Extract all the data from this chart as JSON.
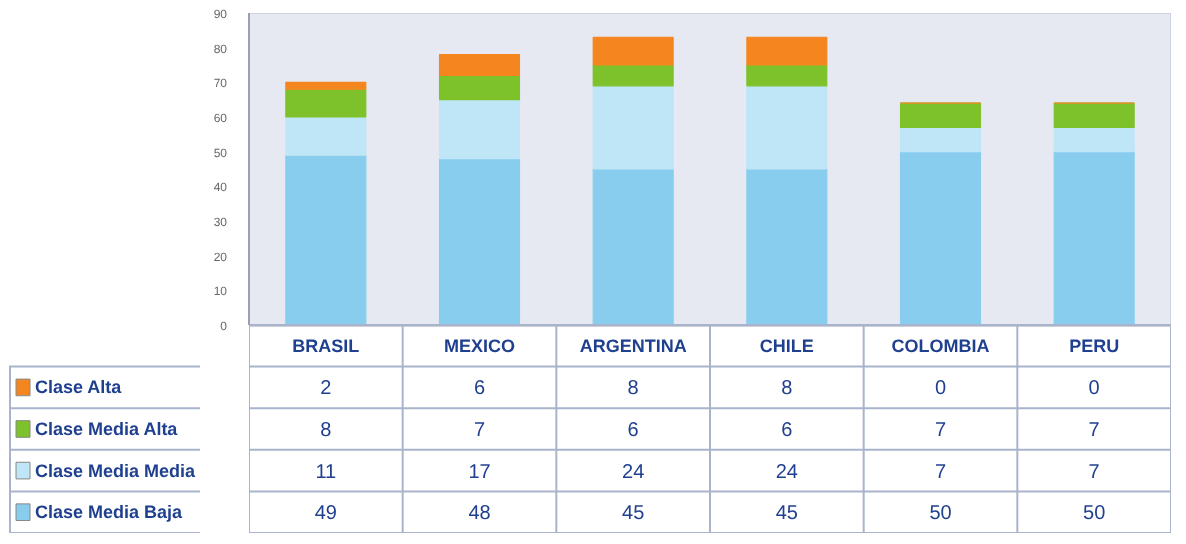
{
  "chart_data": {
    "type": "bar",
    "stacked": true,
    "data_labels": true,
    "grid": "y",
    "legend": "bottom",
    "categories": [
      "BRASIL",
      "MEXICO",
      "ARGENTINA",
      "CHILE",
      "COLOMBIA",
      "PERU"
    ],
    "ylim": [
      0,
      90
    ],
    "yticks": [
      0,
      10,
      20,
      30,
      40,
      50,
      60,
      70,
      80,
      90
    ],
    "series": [
      {
        "name": "Clase Media Baja",
        "color": "#88cdee",
        "values": [
          49,
          48,
          45,
          45,
          50,
          50
        ]
      },
      {
        "name": "Clase Media Media",
        "color": "#bfe6f7",
        "values": [
          11,
          17,
          24,
          24,
          7,
          7
        ]
      },
      {
        "name": "Clase Media Alta",
        "color": "#7dc22a",
        "values": [
          8,
          7,
          6,
          6,
          7,
          7
        ]
      },
      {
        "name": "Clase Alta",
        "color": "#f5861f",
        "values": [
          2,
          6,
          8,
          8,
          0,
          0
        ]
      }
    ]
  }
}
